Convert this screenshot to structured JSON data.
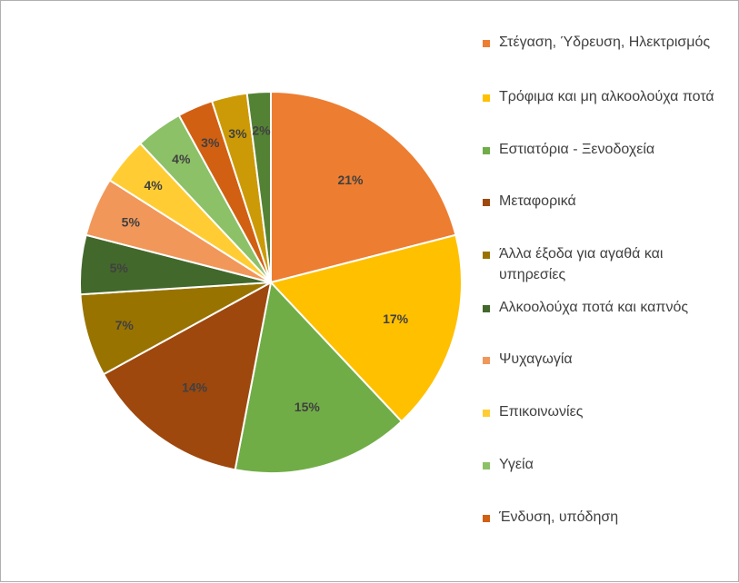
{
  "chart_data": {
    "type": "pie",
    "title": "",
    "legend_position": "right",
    "slices": [
      {
        "label": "Στέγαση, Ύδρευση, Ηλεκτρισμός",
        "value": 21,
        "display": "21%",
        "color": "#ED7D31"
      },
      {
        "label": "Τρόφιμα και μη αλκοολούχα ποτά",
        "value": 17,
        "display": "17%",
        "color": "#FFC000"
      },
      {
        "label": "Εστιατόρια - Ξενοδοχεία",
        "value": 15,
        "display": "15%",
        "color": "#70AD47"
      },
      {
        "label": "Μεταφορικά",
        "value": 14,
        "display": "14%",
        "color": "#9E480E"
      },
      {
        "label": "Άλλα έξοδα για αγαθά και υπηρεσίες",
        "value": 7,
        "display": "7%",
        "color": "#997300"
      },
      {
        "label": "Αλκοολούχα ποτά και καπνός",
        "value": 5,
        "display": "5%",
        "color": "#43682B"
      },
      {
        "label": "Ψυχαγωγία",
        "value": 5,
        "display": "5%",
        "color": "#F1975A"
      },
      {
        "label": "Επικοινωνίες",
        "value": 4,
        "display": "4%",
        "color": "#FFCD33"
      },
      {
        "label": "Υγεία",
        "value": 4,
        "display": "4%",
        "color": "#8CC168"
      },
      {
        "label": "Ένδυση, υπόδηση",
        "value": 3,
        "display": "3%",
        "color": "#D26012"
      },
      {
        "label": "",
        "value": 3,
        "display": "3%",
        "color": "#CC9A06"
      },
      {
        "label": "",
        "value": 2,
        "display": "2%",
        "color": "#548235"
      }
    ]
  }
}
